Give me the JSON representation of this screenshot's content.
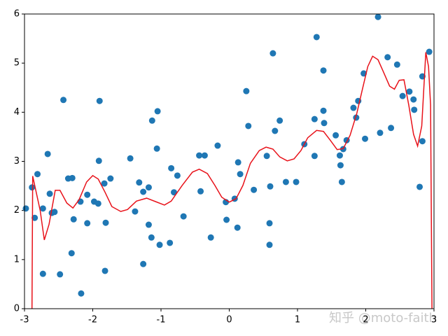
{
  "chart_data": {
    "type": "scatter",
    "xlim": [
      -3,
      3
    ],
    "ylim": [
      0,
      6
    ],
    "xticks": [
      -3,
      -2,
      -1,
      0,
      1,
      2,
      3
    ],
    "yticks": [
      0,
      1,
      2,
      3,
      4,
      5,
      6
    ],
    "watermark": "知乎 @moto-faith",
    "points": {
      "color": "#1f77b4",
      "x": [
        -2.98,
        -2.89,
        -2.85,
        -2.81,
        -2.73,
        -2.73,
        -2.66,
        -2.63,
        -2.6,
        -2.56,
        -2.48,
        -2.43,
        -2.36,
        -2.3,
        -2.31,
        -2.28,
        -2.18,
        -2.17,
        -2.08,
        -2.08,
        -1.98,
        -1.92,
        -1.91,
        -1.9,
        -1.83,
        -1.81,
        -1.82,
        -1.74,
        -1.45,
        -1.38,
        -1.32,
        -1.26,
        -1.26,
        -1.18,
        -1.18,
        -1.14,
        -1.13,
        -1.06,
        -1.05,
        -1.02,
        -0.87,
        -0.85,
        -0.81,
        -0.76,
        -0.67,
        -0.44,
        -0.42,
        -0.36,
        -0.27,
        -0.17,
        -0.05,
        -0.04,
        0.08,
        0.13,
        0.12,
        0.16,
        0.25,
        0.28,
        0.36,
        0.55,
        0.59,
        0.59,
        0.6,
        0.64,
        0.67,
        0.74,
        0.83,
        0.98,
        1.1,
        1.25,
        1.25,
        1.28,
        1.38,
        1.38,
        1.39,
        1.56,
        1.62,
        1.63,
        1.65,
        1.67,
        1.72,
        1.82,
        1.86,
        1.89,
        1.97,
        1.99,
        2.18,
        2.21,
        2.32,
        2.37,
        2.46,
        2.54,
        2.64,
        2.7,
        2.71,
        2.79,
        2.83,
        2.83,
        2.93
      ],
      "y": [
        2.04,
        2.47,
        1.85,
        2.74,
        2.04,
        0.71,
        3.15,
        2.34,
        1.95,
        1.97,
        0.7,
        4.25,
        2.65,
        2.66,
        1.13,
        1.82,
        2.18,
        0.31,
        2.32,
        1.74,
        2.18,
        2.14,
        3.01,
        4.23,
        2.55,
        1.75,
        0.77,
        2.65,
        3.06,
        1.98,
        2.57,
        2.38,
        0.91,
        2.47,
        1.71,
        1.45,
        3.83,
        3.26,
        4.02,
        1.3,
        1.34,
        2.86,
        2.37,
        2.71,
        1.88,
        3.12,
        2.39,
        3.12,
        1.45,
        3.32,
        2.17,
        1.81,
        2.24,
        2.98,
        1.65,
        2.74,
        4.43,
        3.72,
        2.42,
        3.11,
        1.74,
        1.3,
        2.49,
        5.2,
        3.62,
        3.83,
        2.58,
        2.58,
        3.35,
        3.11,
        3.86,
        5.53,
        4.03,
        4.85,
        3.78,
        3.53,
        3.12,
        2.92,
        2.58,
        3.25,
        3.43,
        4.09,
        3.89,
        4.23,
        4.79,
        3.46,
        5.94,
        3.58,
        5.12,
        3.68,
        4.97,
        4.33,
        4.42,
        4.26,
        4.05,
        2.48,
        4.73,
        3.41,
        5.23
      ]
    },
    "curve": {
      "color": "#e8121a",
      "x": [
        -2.89,
        -2.88,
        -2.77,
        -2.71,
        -2.64,
        -2.55,
        -2.48,
        -2.38,
        -2.29,
        -2.2,
        -2.09,
        -2.0,
        -1.92,
        -1.82,
        -1.72,
        -1.59,
        -1.49,
        -1.36,
        -1.21,
        -1.08,
        -0.95,
        -0.85,
        -0.69,
        -0.54,
        -0.44,
        -0.32,
        -0.21,
        -0.11,
        0,
        0.1,
        0.2,
        0.31,
        0.44,
        0.54,
        0.64,
        0.74,
        0.85,
        0.95,
        1.05,
        1.15,
        1.28,
        1.38,
        1.48,
        1.58,
        1.67,
        1.77,
        1.87,
        1.95,
        2.03,
        2.1,
        2.18,
        2.26,
        2.35,
        2.42,
        2.49,
        2.56,
        2.63,
        2.7,
        2.76,
        2.82,
        2.88,
        2.92,
        2.95,
        2.97
      ],
      "y": [
        0,
        2.7,
        2.0,
        1.4,
        1.72,
        2.41,
        2.41,
        2.15,
        2.05,
        2.22,
        2.58,
        2.71,
        2.64,
        2.37,
        2.08,
        1.98,
        2.02,
        2.19,
        2.25,
        2.18,
        2.11,
        2.19,
        2.51,
        2.78,
        2.84,
        2.75,
        2.51,
        2.27,
        2.17,
        2.24,
        2.51,
        2.96,
        3.22,
        3.29,
        3.25,
        3.09,
        3.01,
        3.05,
        3.22,
        3.48,
        3.63,
        3.61,
        3.43,
        3.24,
        3.26,
        3.53,
        3.98,
        4.46,
        4.93,
        5.14,
        5.07,
        4.82,
        4.53,
        4.47,
        4.65,
        4.66,
        4.15,
        3.55,
        3.31,
        3.72,
        5.22,
        4.93,
        4.15,
        0
      ]
    }
  }
}
